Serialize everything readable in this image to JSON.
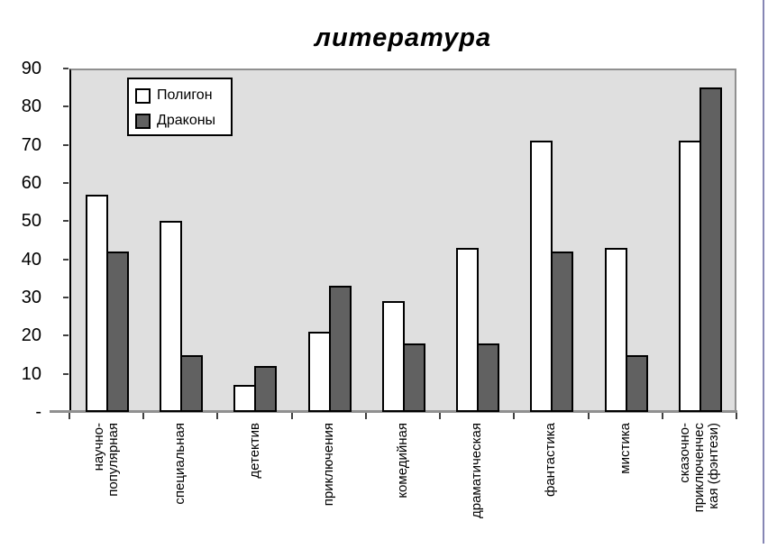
{
  "page": {
    "accent_border_color": "#8686B4",
    "background": "#FFFFFF"
  },
  "chart_data": {
    "type": "bar",
    "title": "литература",
    "categories": [
      "научно-\nпопулярная",
      "специальная",
      "детектив",
      "приключения",
      "комедийная",
      "драматическая",
      "фантастика",
      "мистика",
      "сказочно-\nприключенчес\nкая (фэнтези)"
    ],
    "series": [
      {
        "name": "Полигон",
        "color": "#FFFFFF",
        "values": [
          57,
          50,
          7,
          21,
          29,
          43,
          71,
          43,
          71
        ]
      },
      {
        "name": "Драконы",
        "color": "#616161",
        "values": [
          42,
          15,
          12,
          33,
          18,
          18,
          42,
          15,
          85
        ]
      }
    ],
    "xlabel": "",
    "ylabel": "",
    "ylim": [
      0,
      90
    ],
    "ytick_step": 10,
    "zero_tick_label": "-",
    "grid": false,
    "legend_position": "top-left-inside",
    "plot_background": "#DFDFDF",
    "axis_color": "#909090",
    "bar_border_color": "#000000",
    "text_color": "#000000"
  }
}
